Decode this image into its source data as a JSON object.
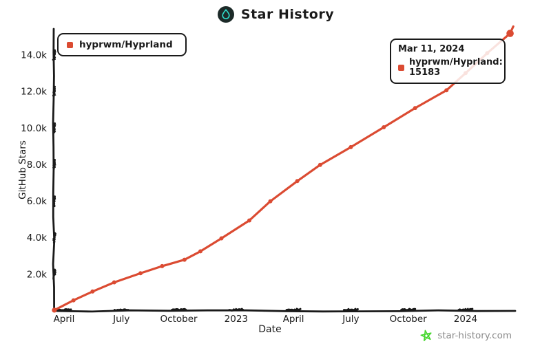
{
  "header": {
    "title": "Star History"
  },
  "legend": {
    "label": "hyprwm/Hyprland",
    "color": "#DB4B32"
  },
  "tooltip": {
    "date": "Mar 11, 2024",
    "series": "hyprwm/Hyprland",
    "value": 15183,
    "text": "hyprwm/Hyprland: 15183",
    "color": "#DB4B32"
  },
  "watermark": {
    "text": "star-history.com",
    "star_color": "#44D62C",
    "text_color": "#8a8a8a"
  },
  "chart_data": {
    "type": "line",
    "title": "Star History",
    "xlabel": "Date",
    "ylabel": "GitHub Stars",
    "axis_color": "#1a1a1a",
    "grid": false,
    "legend_position": "top-left",
    "ylim": [
      0,
      15600
    ],
    "x_range": [
      "2022-03-16",
      "2024-03-17"
    ],
    "y_ticks": [
      {
        "label": "2.0k",
        "value": 2000
      },
      {
        "label": "4.0k",
        "value": 4000
      },
      {
        "label": "6.0k",
        "value": 6000
      },
      {
        "label": "8.0k",
        "value": 8000
      },
      {
        "label": "10.0k",
        "value": 10000
      },
      {
        "label": "12.0k",
        "value": 12000
      },
      {
        "label": "14.0k",
        "value": 14000
      }
    ],
    "x_ticks": [
      {
        "label": "April",
        "t": 0
      },
      {
        "label": "July",
        "t": 3
      },
      {
        "label": "October",
        "t": 6
      },
      {
        "label": "2023",
        "t": 9
      },
      {
        "label": "April",
        "t": 12
      },
      {
        "label": "July",
        "t": 15
      },
      {
        "label": "October",
        "t": 18
      },
      {
        "label": "2024",
        "t": 21
      }
    ],
    "series": [
      {
        "name": "hyprwm/Hyprland",
        "color": "#DB4B32",
        "points": [
          {
            "date": "2022-03-16",
            "stars": 40
          },
          {
            "date": "2022-04-16",
            "stars": 580
          },
          {
            "date": "2022-05-16",
            "stars": 1060
          },
          {
            "date": "2022-06-20",
            "stars": 1560
          },
          {
            "date": "2022-08-01",
            "stars": 2060
          },
          {
            "date": "2022-09-05",
            "stars": 2450
          },
          {
            "date": "2022-10-10",
            "stars": 2800
          },
          {
            "date": "2022-11-05",
            "stars": 3260
          },
          {
            "date": "2022-12-08",
            "stars": 3970
          },
          {
            "date": "2023-01-22",
            "stars": 4950
          },
          {
            "date": "2023-02-25",
            "stars": 6000
          },
          {
            "date": "2023-04-07",
            "stars": 7100
          },
          {
            "date": "2023-05-13",
            "stars": 7990
          },
          {
            "date": "2023-07-01",
            "stars": 8960
          },
          {
            "date": "2023-08-23",
            "stars": 10050
          },
          {
            "date": "2023-10-12",
            "stars": 11100
          },
          {
            "date": "2023-12-01",
            "stars": 12070
          },
          {
            "date": "2024-01-01",
            "stars": 13010
          },
          {
            "date": "2024-02-05",
            "stars": 14100
          },
          {
            "date": "2024-03-11",
            "stars": 15183,
            "highlight": true
          },
          {
            "date": "2024-03-16",
            "stars": 15560,
            "marker": false
          }
        ]
      }
    ]
  }
}
